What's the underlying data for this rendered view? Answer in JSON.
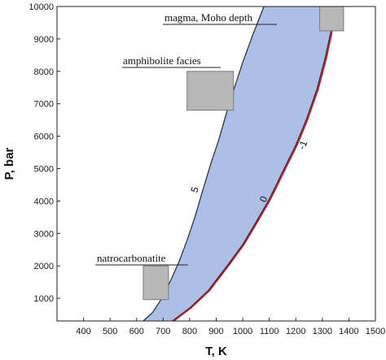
{
  "chart_data": {
    "type": "area",
    "xlabel": "T,  K",
    "ylabel": "P, bar",
    "xlim": [
      300,
      1500
    ],
    "ylim": [
      300,
      10000
    ],
    "x_ticks": [
      400,
      500,
      600,
      700,
      800,
      900,
      1000,
      1100,
      1200,
      1300,
      1400,
      1500
    ],
    "y_ticks": [
      1000,
      2000,
      3000,
      4000,
      5000,
      6000,
      7000,
      8000,
      9000,
      10000
    ],
    "grid": false,
    "fill_color": "#aebfe6",
    "series": [
      {
        "x": [
          625,
          660,
          700,
          730,
          760,
          790,
          820,
          850,
          880,
          910,
          940,
          970,
          1000,
          1040,
          1080
        ],
        "y": [
          300,
          560,
          1060,
          1580,
          2130,
          2790,
          3510,
          4350,
          5160,
          5900,
          6750,
          7530,
          8280,
          9170,
          10000
        ],
        "label": "5"
      },
      {
        "x": [
          735,
          800,
          870,
          940,
          1000,
          1050,
          1100,
          1150,
          1200,
          1240,
          1280,
          1310,
          1330,
          1345
        ],
        "y": [
          300,
          700,
          1240,
          1990,
          2660,
          3350,
          4060,
          4900,
          5730,
          6520,
          7460,
          8390,
          9150,
          10000
        ],
        "label": "0"
      },
      {
        "x": [
          740,
          805,
          875,
          945,
          1005,
          1055,
          1105,
          1155,
          1205,
          1245,
          1285,
          1315,
          1335,
          1350
        ],
        "y": [
          300,
          700,
          1240,
          1990,
          2660,
          3350,
          4060,
          4900,
          5730,
          6520,
          7460,
          8390,
          9150,
          10000
        ],
        "label": "-1",
        "color": "#c01830"
      }
    ],
    "annotations": [
      {
        "text": "magma, Moho depth",
        "box": {
          "x": [
            1290,
            1380
          ],
          "y": [
            9250,
            10000
          ]
        }
      },
      {
        "text": "amphibolite facies",
        "box": {
          "x": [
            790,
            965
          ],
          "y": [
            6800,
            8000
          ]
        }
      },
      {
        "text": "natrocarbonatite",
        "box": {
          "x": [
            625,
            720
          ],
          "y": [
            960,
            2000
          ]
        }
      }
    ]
  }
}
